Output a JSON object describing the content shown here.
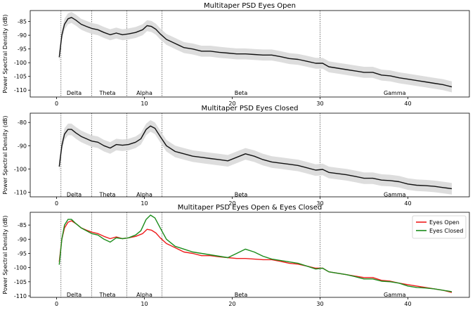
{
  "chart_data": [
    {
      "type": "line",
      "title": "Multitaper PSD Eyes Open",
      "xlabel": "",
      "ylabel": "Power Spectral Density (dB)",
      "xlim": [
        -3,
        47
      ],
      "ylim": [
        -112.5,
        -81
      ],
      "xticks": [
        0,
        10,
        20,
        30,
        40
      ],
      "yticks": [
        -85,
        -90,
        -95,
        -100,
        -105,
        -110
      ],
      "grid": false,
      "band_boundaries": [
        0.5,
        4,
        8,
        12,
        30
      ],
      "bands": [
        {
          "label": "Delta",
          "x": 2.0
        },
        {
          "label": "Theta",
          "x": 5.8
        },
        {
          "label": "Alpha",
          "x": 10.0
        },
        {
          "label": "Beta",
          "x": 21.0
        },
        {
          "label": "Gamma",
          "x": 38.5
        }
      ],
      "band_label_y": -111,
      "shaded_band_halfwidth_db": 2,
      "series": [
        {
          "color": "#111111",
          "x": [
            0.3,
            0.6,
            0.9,
            1.3,
            1.7,
            2.2,
            2.8,
            3.4,
            4.0,
            4.7,
            5.4,
            6.1,
            6.8,
            7.5,
            8.2,
            9.0,
            9.8,
            10.3,
            10.8,
            11.3,
            11.8,
            12.5,
            13.5,
            14.5,
            15.5,
            16.5,
            17.5,
            18.5,
            19.5,
            20.5,
            21.5,
            22.5,
            23.5,
            24.5,
            25.5,
            26.5,
            27.5,
            28.5,
            29.5,
            30.3,
            31.0,
            32.0,
            33.0,
            34.0,
            35.0,
            36.0,
            37.0,
            38.0,
            39.0,
            40.0,
            41.0,
            42.0,
            43.0,
            44.0,
            45.0
          ],
          "values": [
            -98,
            -90,
            -86,
            -84,
            -83.5,
            -84.5,
            -86,
            -86.8,
            -87.5,
            -88,
            -89,
            -89.8,
            -89.2,
            -89.8,
            -89.5,
            -89,
            -88,
            -86.5,
            -86.8,
            -87.8,
            -89.5,
            -91.5,
            -93,
            -94.5,
            -95,
            -95.8,
            -95.8,
            -96.2,
            -96.5,
            -96.8,
            -96.8,
            -97,
            -97.2,
            -97.2,
            -97.8,
            -98.5,
            -98.8,
            -99.5,
            -100.2,
            -100.2,
            -101.5,
            -102,
            -102.5,
            -103,
            -103.5,
            -103.5,
            -104.5,
            -104.8,
            -105.5,
            -106,
            -106.5,
            -107,
            -107.5,
            -108,
            -108.8
          ]
        }
      ]
    },
    {
      "type": "line",
      "title": "Multitaper PSD Eyes Closed",
      "xlabel": "",
      "ylabel": "Power Spectral Density (dB)",
      "xlim": [
        -3,
        47
      ],
      "ylim": [
        -112,
        -76
      ],
      "xticks": [
        0,
        10,
        20,
        30,
        40
      ],
      "yticks": [
        -80,
        -90,
        -100,
        -110
      ],
      "grid": false,
      "band_boundaries": [
        0.5,
        4,
        8,
        12,
        30
      ],
      "bands": [
        {
          "label": "Delta",
          "x": 2.0
        },
        {
          "label": "Theta",
          "x": 5.8
        },
        {
          "label": "Alpha",
          "x": 10.0
        },
        {
          "label": "Beta",
          "x": 21.0
        },
        {
          "label": "Gamma",
          "x": 38.5
        }
      ],
      "band_label_y": -111,
      "shaded_band_halfwidth_db": 2.5,
      "series": [
        {
          "color": "#111111",
          "x": [
            0.3,
            0.6,
            0.9,
            1.3,
            1.7,
            2.2,
            2.8,
            3.4,
            4.0,
            4.7,
            5.4,
            6.1,
            6.8,
            7.5,
            8.2,
            9.0,
            9.6,
            10.2,
            10.7,
            11.2,
            11.8,
            12.5,
            13.5,
            14.5,
            15.5,
            16.5,
            17.5,
            18.5,
            19.5,
            20.5,
            21.5,
            22.5,
            23.5,
            24.5,
            25.5,
            26.5,
            27.5,
            28.5,
            29.5,
            30.3,
            31.0,
            32.0,
            33.0,
            34.0,
            35.0,
            36.0,
            37.0,
            38.0,
            39.0,
            40.0,
            41.0,
            42.0,
            43.0,
            44.0,
            45.0
          ],
          "values": [
            -99,
            -90,
            -85,
            -83,
            -83,
            -84.5,
            -86,
            -87,
            -88,
            -88.5,
            -90,
            -91,
            -89.5,
            -89.8,
            -89.5,
            -88.5,
            -87,
            -83,
            -81.5,
            -82.5,
            -86,
            -90,
            -92.5,
            -93.5,
            -94.5,
            -95,
            -95.5,
            -96,
            -96.5,
            -95,
            -93.5,
            -94.5,
            -96,
            -97,
            -97.5,
            -98,
            -98.5,
            -99.5,
            -100.5,
            -100.2,
            -101.5,
            -102,
            -102.5,
            -103.2,
            -104,
            -104,
            -104.8,
            -105,
            -105.5,
            -106.5,
            -107,
            -107.2,
            -107.5,
            -108,
            -108.5
          ]
        }
      ]
    },
    {
      "type": "line",
      "title": "Multitaper PSD Eyes Open & Eyes Closed",
      "xlabel": "",
      "ylabel": "Power Spectral Density (dB)",
      "xlim": [
        -3,
        47
      ],
      "ylim": [
        -110.5,
        -80.5
      ],
      "xticks": [
        0,
        10,
        20,
        30,
        40
      ],
      "yticks": [
        -85,
        -90,
        -95,
        -100,
        -105,
        -110
      ],
      "grid": false,
      "band_boundaries": [
        0.5,
        4,
        8,
        12,
        30
      ],
      "bands": [
        {
          "label": "Delta",
          "x": 2.0
        },
        {
          "label": "Theta",
          "x": 5.8
        },
        {
          "label": "Alpha",
          "x": 10.0
        },
        {
          "label": "Beta",
          "x": 21.0
        },
        {
          "label": "Gamma",
          "x": 38.5
        }
      ],
      "band_label_y": -109.5,
      "legend": "top-right",
      "series": [
        {
          "name": "Eyes Open",
          "color": "#ee1c1c",
          "x": [
            0.3,
            0.6,
            0.9,
            1.3,
            1.7,
            2.2,
            2.8,
            3.4,
            4.0,
            4.7,
            5.4,
            6.1,
            6.8,
            7.5,
            8.2,
            9.0,
            9.8,
            10.3,
            10.8,
            11.3,
            11.8,
            12.5,
            13.5,
            14.5,
            15.5,
            16.5,
            17.5,
            18.5,
            19.5,
            20.5,
            21.5,
            22.5,
            23.5,
            24.5,
            25.5,
            26.5,
            27.5,
            28.5,
            29.5,
            30.3,
            31.0,
            32.0,
            33.0,
            34.0,
            35.0,
            36.0,
            37.0,
            38.0,
            39.0,
            40.0,
            41.0,
            42.0,
            43.0,
            44.0,
            45.0
          ],
          "values": [
            -98,
            -90,
            -86,
            -84,
            -83.5,
            -84.5,
            -86,
            -86.8,
            -87.5,
            -88,
            -89,
            -89.8,
            -89.2,
            -89.8,
            -89.5,
            -89,
            -88,
            -86.5,
            -86.8,
            -87.8,
            -89.5,
            -91.5,
            -93,
            -94.5,
            -95,
            -95.8,
            -95.8,
            -96.2,
            -96.5,
            -96.8,
            -96.8,
            -97,
            -97.2,
            -97.2,
            -97.8,
            -98.5,
            -98.8,
            -99.5,
            -100.2,
            -100.2,
            -101.5,
            -102,
            -102.5,
            -103,
            -103.5,
            -103.5,
            -104.5,
            -104.8,
            -105.5,
            -106,
            -106.5,
            -107,
            -107.5,
            -108,
            -108.8
          ]
        },
        {
          "name": "Eyes Closed",
          "color": "#1a8c1a",
          "x": [
            0.3,
            0.6,
            0.9,
            1.3,
            1.7,
            2.2,
            2.8,
            3.4,
            4.0,
            4.7,
            5.4,
            6.1,
            6.8,
            7.5,
            8.2,
            9.0,
            9.6,
            10.2,
            10.7,
            11.2,
            11.8,
            12.5,
            13.5,
            14.5,
            15.5,
            16.5,
            17.5,
            18.5,
            19.5,
            20.5,
            21.5,
            22.5,
            23.5,
            24.5,
            25.5,
            26.5,
            27.5,
            28.5,
            29.5,
            30.3,
            31.0,
            32.0,
            33.0,
            34.0,
            35.0,
            36.0,
            37.0,
            38.0,
            39.0,
            40.0,
            41.0,
            42.0,
            43.0,
            44.0,
            45.0
          ],
          "values": [
            -99,
            -90,
            -85,
            -83,
            -83,
            -84.5,
            -86,
            -87,
            -88,
            -88.5,
            -90,
            -91,
            -89.5,
            -89.8,
            -89.5,
            -88.5,
            -87,
            -83,
            -81.5,
            -82.5,
            -86,
            -90,
            -92.5,
            -93.5,
            -94.5,
            -95,
            -95.5,
            -96,
            -96.5,
            -95,
            -93.5,
            -94.5,
            -96,
            -97,
            -97.5,
            -98,
            -98.5,
            -99.5,
            -100.5,
            -100.2,
            -101.5,
            -102,
            -102.5,
            -103.2,
            -104,
            -104,
            -104.8,
            -105,
            -105.5,
            -106.5,
            -107,
            -107.2,
            -107.5,
            -108,
            -108.5
          ]
        }
      ]
    }
  ]
}
